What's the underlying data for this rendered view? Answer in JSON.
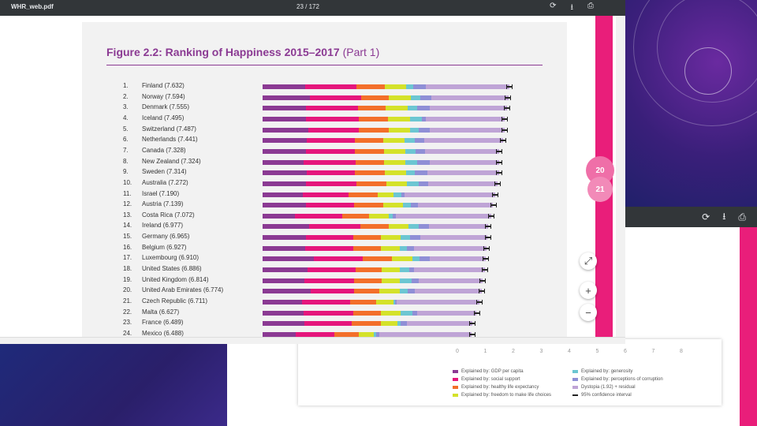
{
  "viewer": {
    "file_name": "WHR_web.pdf",
    "page_indicator": "23 / 172",
    "icons": [
      "rotate-icon",
      "download-icon",
      "print-icon"
    ],
    "side_pages": [
      "20",
      "21"
    ],
    "zoom_fit": "⤢",
    "zoom_in": "+",
    "zoom_out": "−"
  },
  "figure": {
    "title_bold": "Figure 2.2: Ranking of Happiness 2015–2017",
    "title_light": "(Part 1)"
  },
  "colors": {
    "gdp": "#8b3a93",
    "social": "#e5167c",
    "health": "#f36f2a",
    "freedom": "#d4e22a",
    "generosity": "#6cc6d2",
    "corruption": "#8f8fd6",
    "dystopia": "#bfa4d6",
    "ci": "#222222"
  },
  "chart_data": {
    "type": "bar",
    "stacked": true,
    "orientation": "horizontal",
    "title": "Figure 2.2: Ranking of Happiness 2015–2017 (Part 1)",
    "xlim": [
      0,
      8
    ],
    "x_ticks": [
      "0",
      "1",
      "2",
      "3",
      "4",
      "5",
      "6",
      "7",
      "8"
    ],
    "components": [
      {
        "key": "gdp",
        "label": "Explained by: GDP per capita"
      },
      {
        "key": "social",
        "label": "Explained by: social support"
      },
      {
        "key": "health",
        "label": "Explained by: healthy life expectancy"
      },
      {
        "key": "freedom",
        "label": "Explained by: freedom to make life choices"
      },
      {
        "key": "generosity",
        "label": "Explained by: generosity"
      },
      {
        "key": "corruption",
        "label": "Explained by: perceptions of corruption"
      },
      {
        "key": "dystopia",
        "label": "Dystopia (1.92) + residual"
      },
      {
        "key": "ci",
        "label": "95% confidence interval"
      }
    ],
    "rows": [
      {
        "rank": "1.",
        "label": "Finland (7.632)",
        "score": 7.632,
        "parts": [
          1.31,
          1.59,
          0.87,
          0.68,
          0.2,
          0.39,
          2.59
        ]
      },
      {
        "rank": "2.",
        "label": "Norway (7.594)",
        "score": 7.594,
        "parts": [
          1.46,
          1.58,
          0.86,
          0.69,
          0.29,
          0.34,
          2.38
        ]
      },
      {
        "rank": "3.",
        "label": "Denmark (7.555)",
        "score": 7.555,
        "parts": [
          1.35,
          1.59,
          0.87,
          0.68,
          0.28,
          0.41,
          2.38
        ]
      },
      {
        "rank": "4.",
        "label": "Iceland (7.495)",
        "score": 7.495,
        "parts": [
          1.34,
          1.64,
          0.91,
          0.68,
          0.35,
          0.14,
          2.43
        ]
      },
      {
        "rank": "5.",
        "label": "Switzerland (7.487)",
        "score": 7.487,
        "parts": [
          1.42,
          1.55,
          0.93,
          0.66,
          0.26,
          0.36,
          2.31
        ]
      },
      {
        "rank": "6.",
        "label": "Netherlands (7.441)",
        "score": 7.441,
        "parts": [
          1.36,
          1.49,
          0.89,
          0.64,
          0.33,
          0.29,
          2.44
        ]
      },
      {
        "rank": "7.",
        "label": "Canada (7.328)",
        "score": 7.328,
        "parts": [
          1.33,
          1.53,
          0.9,
          0.65,
          0.32,
          0.29,
          2.31
        ]
      },
      {
        "rank": "8.",
        "label": "New Zealand (7.324)",
        "score": 7.324,
        "parts": [
          1.27,
          1.6,
          0.88,
          0.67,
          0.36,
          0.39,
          2.15
        ]
      },
      {
        "rank": "9.",
        "label": "Sweden (7.314)",
        "score": 7.314,
        "parts": [
          1.36,
          1.5,
          0.91,
          0.66,
          0.29,
          0.38,
          2.21
        ]
      },
      {
        "rank": "10.",
        "label": "Australia (7.272)",
        "score": 7.272,
        "parts": [
          1.34,
          1.57,
          0.91,
          0.65,
          0.36,
          0.3,
          2.14
        ]
      },
      {
        "rank": "11.",
        "label": "Israel (7.190)",
        "score": 7.19,
        "parts": [
          1.24,
          1.42,
          0.89,
          0.49,
          0.26,
          0.08,
          2.81
        ]
      },
      {
        "rank": "12.",
        "label": "Austria (7.139)",
        "score": 7.139,
        "parts": [
          1.34,
          1.5,
          0.89,
          0.62,
          0.24,
          0.22,
          2.32
        ]
      },
      {
        "rank": "13.",
        "label": "Costa Rica (7.072)",
        "score": 7.072,
        "parts": [
          1.01,
          1.46,
          0.82,
          0.62,
          0.11,
          0.1,
          2.95
        ]
      },
      {
        "rank": "14.",
        "label": "Ireland (6.977)",
        "score": 6.977,
        "parts": [
          1.45,
          1.58,
          0.88,
          0.61,
          0.32,
          0.31,
          1.82
        ]
      },
      {
        "rank": "15.",
        "label": "Germany (6.965)",
        "score": 6.965,
        "parts": [
          1.34,
          1.47,
          0.86,
          0.61,
          0.28,
          0.31,
          2.09
        ]
      },
      {
        "rank": "16.",
        "label": "Belgium (6.927)",
        "score": 6.927,
        "parts": [
          1.32,
          1.48,
          0.87,
          0.58,
          0.21,
          0.23,
          2.23
        ]
      },
      {
        "rank": "17.",
        "label": "Luxembourg (6.910)",
        "score": 6.91,
        "parts": [
          1.58,
          1.52,
          0.9,
          0.63,
          0.23,
          0.32,
          1.73
        ]
      },
      {
        "rank": "18.",
        "label": "United States (6.886)",
        "score": 6.886,
        "parts": [
          1.4,
          1.47,
          0.82,
          0.55,
          0.29,
          0.15,
          2.21
        ]
      },
      {
        "rank": "19.",
        "label": "United Kingdom (6.814)",
        "score": 6.814,
        "parts": [
          1.3,
          1.53,
          0.86,
          0.56,
          0.36,
          0.23,
          1.96
        ]
      },
      {
        "rank": "20.",
        "label": "United Arab Emirates (6.774)",
        "score": 6.774,
        "parts": [
          1.48,
          1.36,
          0.78,
          0.62,
          0.26,
          0.2,
          2.07
        ]
      },
      {
        "rank": "21.",
        "label": "Czech Republic (6.711)",
        "score": 6.711,
        "parts": [
          1.23,
          1.48,
          0.81,
          0.52,
          0.05,
          0.05,
          2.57
        ]
      },
      {
        "rank": "22.",
        "label": "Malta (6.627)",
        "score": 6.627,
        "parts": [
          1.27,
          1.53,
          0.87,
          0.61,
          0.36,
          0.15,
          1.83
        ]
      },
      {
        "rank": "23.",
        "label": "France (6.489)",
        "score": 6.489,
        "parts": [
          1.29,
          1.47,
          0.9,
          0.5,
          0.12,
          0.18,
          2.03
        ]
      },
      {
        "rank": "24.",
        "label": "Mexico (6.488)",
        "score": 6.488,
        "parts": [
          1.02,
          1.21,
          0.75,
          0.46,
          0.08,
          0.08,
          2.87
        ]
      }
    ]
  }
}
